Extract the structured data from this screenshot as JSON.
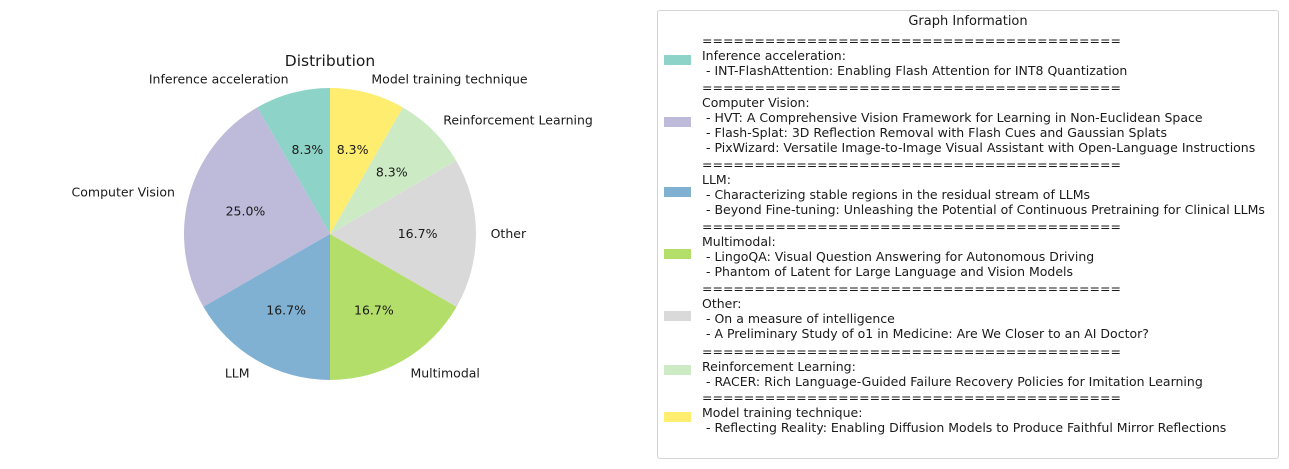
{
  "chart_data": {
    "type": "pie",
    "title": "Distribution",
    "categories": [
      "Inference acceleration",
      "Computer Vision",
      "LLM",
      "Multimodal",
      "Other",
      "Reinforcement Learning",
      "Model training technique"
    ],
    "values": [
      8.3,
      25.0,
      16.7,
      16.7,
      16.7,
      8.3,
      8.3
    ],
    "value_labels": [
      "8.3%",
      "25.0%",
      "16.7%",
      "16.7%",
      "16.7%",
      "8.3%",
      "8.3%"
    ],
    "colors": [
      "#8dd3c7",
      "#bebada",
      "#80b1d3",
      "#b3de69",
      "#d9d9d9",
      "#ccebc5",
      "#ffed6f"
    ],
    "start_angle": "90 degrees, counter-clockwise",
    "legend_placement": "right"
  },
  "legend": {
    "title": "Graph Information",
    "separator": "========================================",
    "entries": [
      {
        "color": "#8dd3c7",
        "lines": [
          "Inference acceleration:",
          " - INT-FlashAttention: Enabling Flash Attention for INT8 Quantization"
        ]
      },
      {
        "color": "#bebada",
        "lines": [
          "Computer Vision:",
          " - HVT: A Comprehensive Vision Framework for Learning in Non-Euclidean Space",
          " - Flash-Splat: 3D Reflection Removal with Flash Cues and Gaussian Splats",
          " - PixWizard: Versatile Image-to-Image Visual Assistant with Open-Language Instructions"
        ]
      },
      {
        "color": "#80b1d3",
        "lines": [
          "LLM:",
          " - Characterizing stable regions in the residual stream of LLMs",
          " - Beyond Fine-tuning: Unleashing the Potential of Continuous Pretraining for Clinical LLMs"
        ]
      },
      {
        "color": "#b3de69",
        "lines": [
          "Multimodal:",
          " - LingoQA: Visual Question Answering for Autonomous Driving",
          " - Phantom of Latent for Large Language and Vision Models"
        ]
      },
      {
        "color": "#d9d9d9",
        "lines": [
          "Other:",
          " - On a measure of intelligence",
          " - A Preliminary Study of o1 in Medicine: Are We Closer to an AI Doctor?"
        ]
      },
      {
        "color": "#ccebc5",
        "lines": [
          "Reinforcement Learning:",
          " - RACER: Rich Language-Guided Failure Recovery Policies for Imitation Learning"
        ]
      },
      {
        "color": "#ffed6f",
        "lines": [
          "Model training technique:",
          " - Reflecting Reality: Enabling Diffusion Models to Produce Faithful Mirror Reflections"
        ]
      }
    ]
  }
}
